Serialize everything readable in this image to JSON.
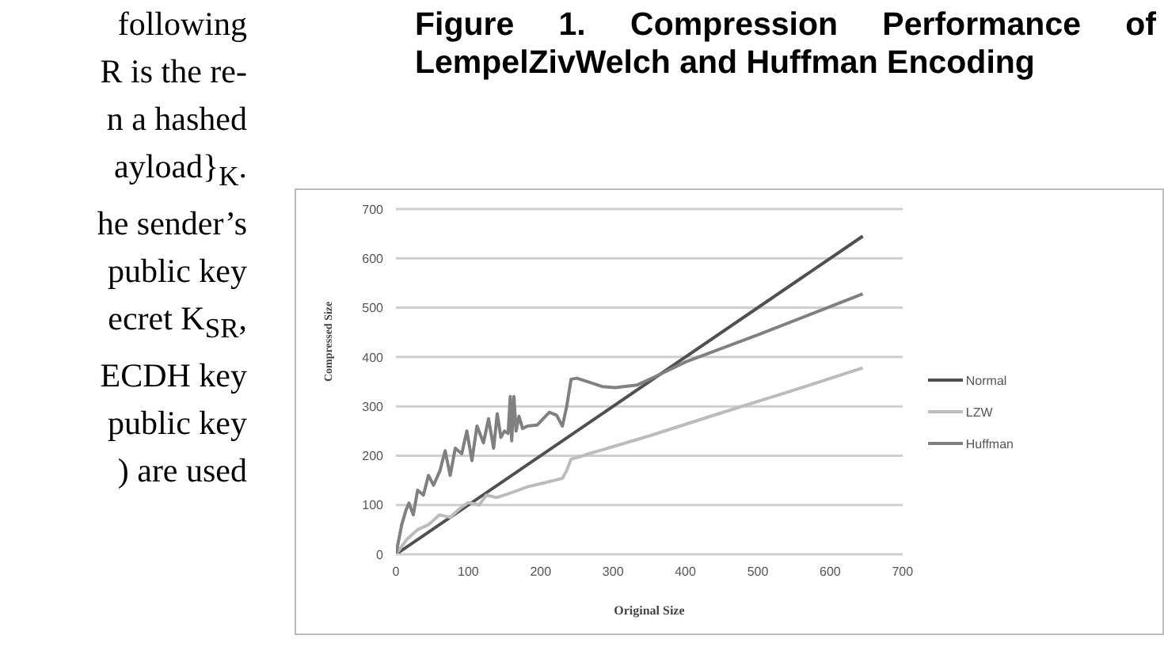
{
  "chart_data": {
    "type": "line",
    "title": "Figure 1.  Compression Performance of LempelZivWelch and Huffman Encoding",
    "xlabel": "Original Size",
    "ylabel": "Compressed Size",
    "annotations": [
      "following",
      "R is the re-",
      "n a hashed",
      "ayload}$_{K}$.",
      "he sender’s",
      "public key",
      "ecret K$_{SR}$,",
      "ECDH key",
      "public key",
      ") are used"
    ],
    "xlim": [
      0,
      700
    ],
    "xticks": [
      0,
      100,
      200,
      300,
      400,
      500,
      600,
      700
    ],
    "ylim": [
      0,
      700
    ],
    "yticks": [
      0,
      100,
      200,
      300,
      400,
      500,
      600,
      700
    ],
    "grid": "y",
    "legend": "right",
    "marker": "none",
    "line_style": "solid",
    "series": [
      {
        "name": "Normal",
        "color": "#505050",
        "x": [
          0,
          645
        ],
        "values": [
          0,
          645
        ]
      },
      {
        "name": "LZW",
        "color": "#bcbcbc",
        "x": [
          0,
          15,
          30,
          45,
          60,
          75,
          90,
          100,
          115,
          125,
          139,
          160,
          182,
          205,
          230,
          236,
          242,
          255,
          267,
          350,
          450,
          550,
          645
        ],
        "values": [
          0,
          30,
          50,
          60,
          80,
          75,
          95,
          105,
          100,
          120,
          115,
          125,
          137,
          145,
          154,
          170,
          193,
          198,
          204,
          240,
          287,
          333,
          378
        ]
      },
      {
        "name": "Huffman",
        "color": "#808080",
        "x": [
          0,
          8,
          14,
          18,
          24,
          30,
          38,
          45,
          52,
          61,
          68,
          75,
          82,
          91,
          98,
          105,
          112,
          121,
          128,
          135,
          140,
          145,
          150,
          155,
          158,
          160,
          163,
          166,
          170,
          175,
          182,
          195,
          212,
          222,
          230,
          236,
          242,
          250,
          267,
          285,
          303,
          333,
          358,
          400,
          500,
          645
        ],
        "values": [
          0,
          60,
          90,
          104,
          80,
          130,
          120,
          160,
          140,
          170,
          210,
          160,
          215,
          204,
          250,
          190,
          260,
          226,
          275,
          215,
          285,
          237,
          250,
          245,
          320,
          230,
          320,
          250,
          280,
          255,
          260,
          262,
          288,
          282,
          260,
          300,
          355,
          357,
          349,
          340,
          338,
          343,
          360,
          390,
          445,
          528
        ]
      }
    ]
  }
}
